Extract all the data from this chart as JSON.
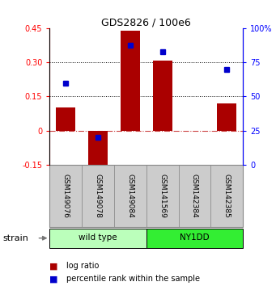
{
  "title": "GDS2826 / 100e6",
  "samples": [
    "GSM149076",
    "GSM149078",
    "GSM149084",
    "GSM141569",
    "GSM142384",
    "GSM142385"
  ],
  "log_ratio": [
    0.1,
    -0.185,
    0.44,
    0.31,
    null,
    0.12
  ],
  "percentile": [
    60,
    20,
    88,
    83,
    null,
    70
  ],
  "groups": [
    {
      "label": "wild type",
      "start": 0,
      "end": 2,
      "color": "#bbffbb"
    },
    {
      "label": "NY1DD",
      "start": 3,
      "end": 5,
      "color": "#33ee33"
    }
  ],
  "bar_color": "#aa0000",
  "dot_color": "#0000cc",
  "left_ylim": [
    -0.15,
    0.45
  ],
  "right_ylim": [
    0,
    100
  ],
  "left_yticks": [
    -0.15,
    0,
    0.15,
    0.3,
    0.45
  ],
  "right_yticks": [
    0,
    25,
    50,
    75,
    100
  ],
  "hline_dotted": [
    0.15,
    0.3
  ],
  "hline_dash": 0.0,
  "background_plot": "#ffffff",
  "background_label": "#cccccc",
  "bar_width": 0.6,
  "legend_bar_label": "log ratio",
  "legend_dot_label": "percentile rank within the sample",
  "strain_label": "strain"
}
